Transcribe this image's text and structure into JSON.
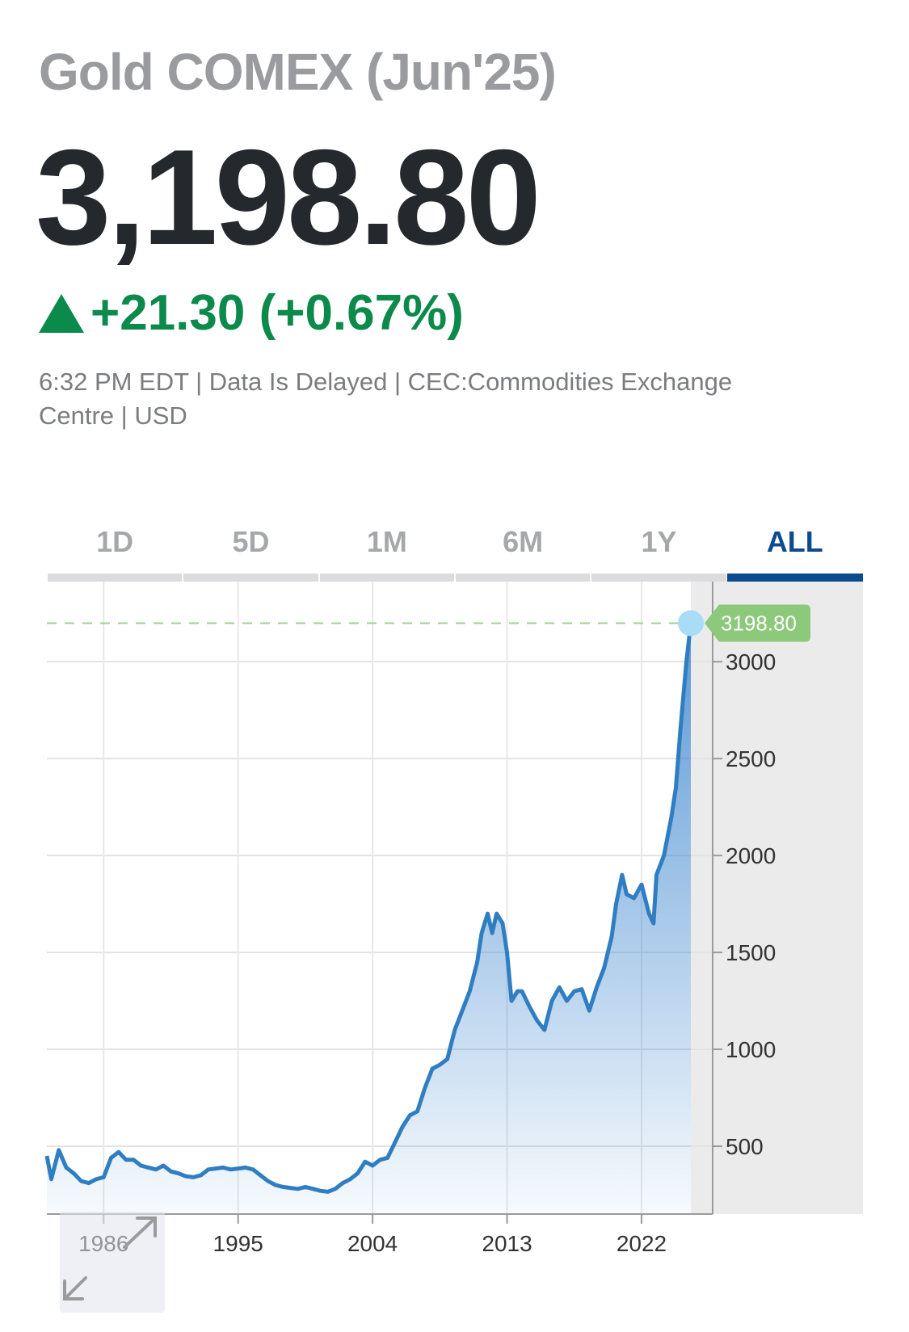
{
  "header": {
    "title": "Gold COMEX (Jun'25)",
    "price": "3,198.80",
    "change": "+21.30 (+0.67%)",
    "meta_line1": "6:32 PM EDT | Data Is Delayed | CEC:Commodities Exchange",
    "meta_line2": "Centre | USD"
  },
  "colors": {
    "accent": "#0c4b8f",
    "up": "#0b8a4c",
    "line": "#2f7ec2",
    "current_badge": "#8cc97b"
  },
  "tabs": [
    {
      "label": "1D",
      "active": false
    },
    {
      "label": "5D",
      "active": false
    },
    {
      "label": "1M",
      "active": false
    },
    {
      "label": "6M",
      "active": false
    },
    {
      "label": "1Y",
      "active": false
    },
    {
      "label": "ALL",
      "active": true
    }
  ],
  "icons": {
    "expand": "expand-arrows-icon"
  },
  "chart_data": {
    "type": "area",
    "title": "Gold COMEX (Jun'25)",
    "xlabel": "",
    "ylabel": "",
    "xlim": [
      1982.2,
      2026.8
    ],
    "ylim": [
      150,
      3330
    ],
    "x_ticks": [
      1986,
      1995,
      2004,
      2013,
      2022
    ],
    "y_ticks": [
      500,
      1000,
      1500,
      2000,
      2500,
      3000
    ],
    "grid": true,
    "current_value": 3198.8,
    "current_label": "3198.80",
    "series": [
      {
        "name": "Gold COMEX",
        "x": [
          1982.2,
          1982.5,
          1983.0,
          1983.5,
          1984.0,
          1984.5,
          1985.0,
          1985.5,
          1986.0,
          1986.5,
          1987.0,
          1987.5,
          1988.0,
          1988.5,
          1989.0,
          1989.5,
          1990.0,
          1990.5,
          1991.0,
          1991.5,
          1992.0,
          1992.5,
          1993.0,
          1993.5,
          1994.0,
          1994.5,
          1995.0,
          1995.5,
          1996.0,
          1996.5,
          1997.0,
          1997.5,
          1998.0,
          1998.5,
          1999.0,
          1999.5,
          2000.0,
          2000.5,
          2001.0,
          2001.5,
          2002.0,
          2002.5,
          2003.0,
          2003.5,
          2004.0,
          2004.5,
          2005.0,
          2005.5,
          2006.0,
          2006.5,
          2007.0,
          2007.5,
          2008.0,
          2008.5,
          2009.0,
          2009.5,
          2010.0,
          2010.5,
          2011.0,
          2011.3,
          2011.7,
          2012.0,
          2012.3,
          2012.7,
          2013.0,
          2013.3,
          2013.7,
          2014.0,
          2014.5,
          2015.0,
          2015.5,
          2016.0,
          2016.5,
          2017.0,
          2017.5,
          2018.0,
          2018.5,
          2019.0,
          2019.5,
          2020.0,
          2020.3,
          2020.7,
          2021.0,
          2021.5,
          2022.0,
          2022.5,
          2022.8,
          2023.0,
          2023.5,
          2024.0,
          2024.3,
          2024.6,
          2025.0,
          2025.3
        ],
        "values": [
          450,
          330,
          480,
          390,
          360,
          320,
          310,
          330,
          340,
          440,
          470,
          430,
          430,
          400,
          390,
          380,
          400,
          370,
          360,
          345,
          340,
          350,
          380,
          385,
          390,
          380,
          385,
          390,
          380,
          350,
          320,
          300,
          290,
          285,
          280,
          290,
          280,
          270,
          265,
          280,
          310,
          330,
          360,
          420,
          400,
          430,
          440,
          520,
          600,
          660,
          680,
          800,
          900,
          920,
          950,
          1100,
          1200,
          1300,
          1450,
          1600,
          1700,
          1600,
          1700,
          1650,
          1500,
          1250,
          1300,
          1300,
          1220,
          1150,
          1100,
          1250,
          1320,
          1250,
          1300,
          1310,
          1200,
          1320,
          1420,
          1580,
          1750,
          1900,
          1800,
          1780,
          1850,
          1700,
          1650,
          1900,
          2000,
          2200,
          2350,
          2650,
          3000,
          3198.8
        ]
      }
    ]
  }
}
